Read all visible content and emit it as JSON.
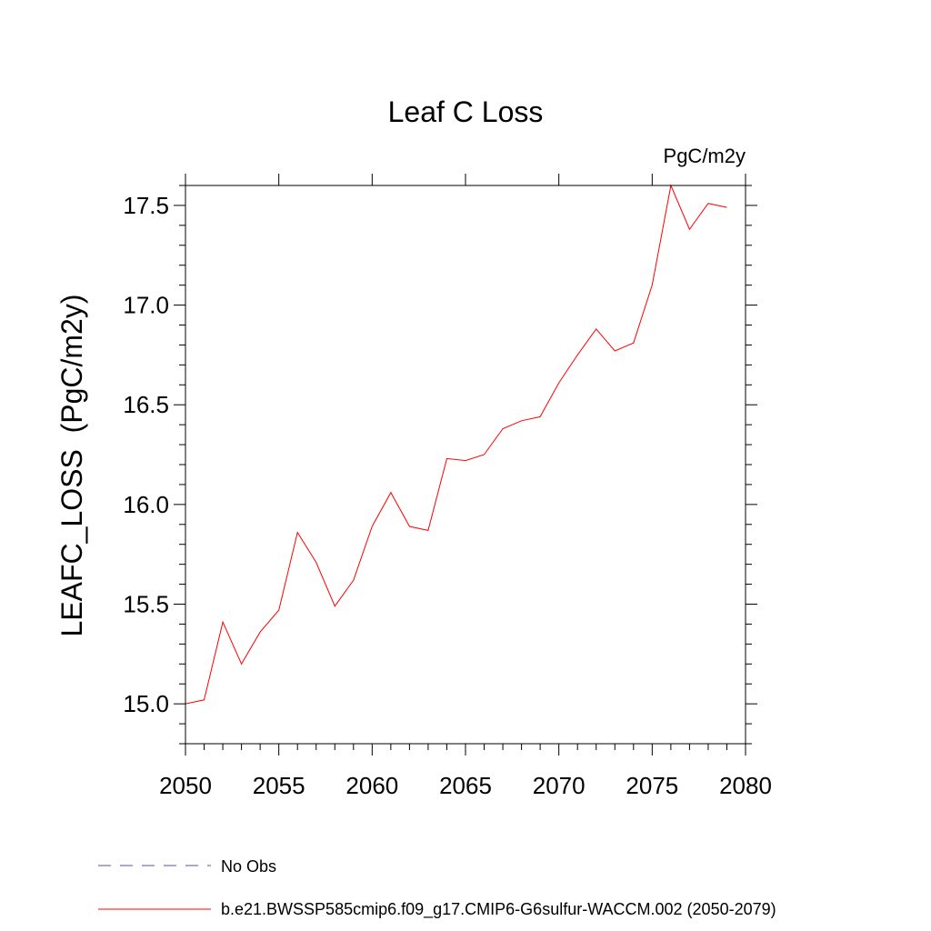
{
  "chart_data": {
    "type": "line",
    "title": "Leaf C Loss",
    "units": "PgC/m2y",
    "xlabel": "",
    "ylabel": "LEAFC_LOSS  (PgC/m2y)",
    "xlim": [
      2050,
      2080
    ],
    "ylim": [
      14.8,
      17.6
    ],
    "x_ticks": [
      2050,
      2055,
      2060,
      2065,
      2070,
      2075,
      2080
    ],
    "x_tick_labels": [
      "2050",
      "2055",
      "2060",
      "2065",
      "2070",
      "2075",
      "2080"
    ],
    "y_ticks": [
      15.0,
      15.5,
      16.0,
      16.5,
      17.0,
      17.5
    ],
    "y_tick_labels": [
      "15.0",
      "15.5",
      "16.0",
      "16.5",
      "17.0",
      "17.5"
    ],
    "grid": false,
    "legend_position": "bottom",
    "x": [
      2050,
      2051,
      2052,
      2053,
      2054,
      2055,
      2056,
      2057,
      2058,
      2059,
      2060,
      2061,
      2062,
      2063,
      2064,
      2065,
      2066,
      2067,
      2068,
      2069,
      2070,
      2071,
      2072,
      2073,
      2074,
      2075,
      2076,
      2077,
      2078,
      2079
    ],
    "series": [
      {
        "name": "b.e21.BWSSP585cmip6.f09_g17.CMIP6-G6sulfur-WACCM.002 (2050-2079)",
        "color": "#ff0000",
        "style": "solid",
        "values": [
          15.0,
          15.02,
          15.41,
          15.2,
          15.36,
          15.47,
          15.86,
          15.71,
          15.49,
          15.62,
          15.89,
          16.06,
          15.89,
          15.87,
          16.23,
          16.22,
          16.25,
          16.38,
          16.42,
          16.44,
          16.61,
          16.75,
          16.88,
          16.77,
          16.81,
          17.1,
          17.6,
          17.38,
          17.51,
          17.49
        ]
      }
    ],
    "legend": [
      {
        "label": "No Obs",
        "color": "#5a4fb0",
        "style": "dashed"
      },
      {
        "label": "b.e21.BWSSP585cmip6.f09_g17.CMIP6-G6sulfur-WACCM.002 (2050-2079)",
        "color": "#ff0000",
        "style": "solid"
      }
    ]
  }
}
